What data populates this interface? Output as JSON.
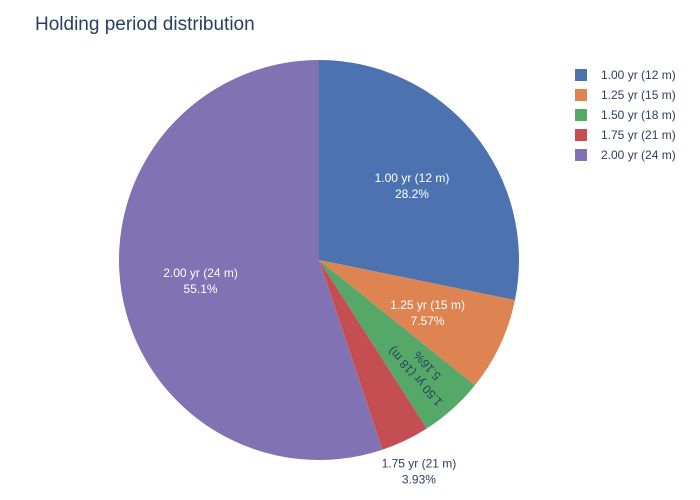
{
  "chart_data": {
    "type": "pie",
    "title": "Holding period distribution",
    "labels": [
      "1.00 yr (12 m)",
      "1.25 yr (15 m)",
      "1.50 yr (18 m)",
      "1.75 yr (21 m)",
      "2.00 yr (24 m)"
    ],
    "values": [
      28.2,
      7.57,
      5.16,
      3.93,
      55.1
    ],
    "percent_text": [
      "28.2%",
      "7.57%",
      "5.16%",
      "3.93%",
      "55.1%"
    ],
    "colors": [
      "#4c72b0",
      "#dd8452",
      "#55a868",
      "#c44e52",
      "#8172b3"
    ],
    "legend_position": "top-right",
    "direction": "clockwise",
    "start": "top"
  }
}
